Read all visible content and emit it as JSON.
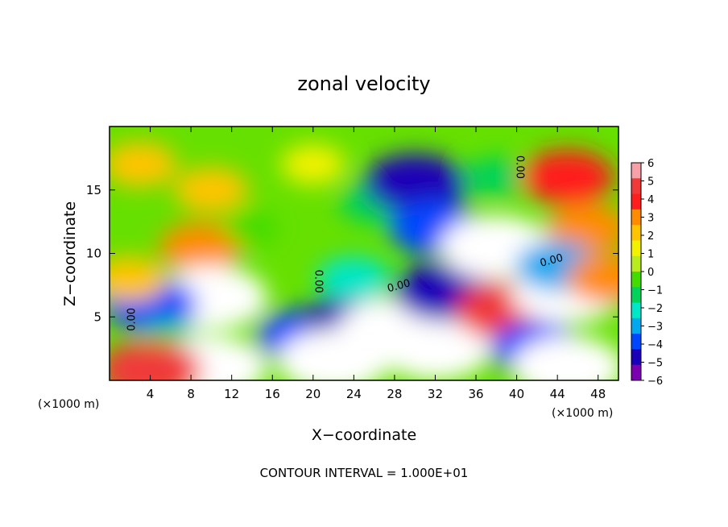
{
  "chart_data": {
    "type": "heatmap",
    "title": "zonal velocity",
    "xlabel": "X−coordinate",
    "ylabel": "Z−coordinate",
    "x_unit_left": "(×1000 m)",
    "x_unit_right": "(×1000 m)",
    "footer": "CONTOUR INTERVAL = 1.000E+01",
    "xlim": [
      0,
      50
    ],
    "ylim": [
      0,
      20
    ],
    "x_ticks": [
      4,
      8,
      12,
      16,
      20,
      24,
      28,
      32,
      36,
      40,
      44,
      48
    ],
    "y_ticks": [
      5,
      10,
      15
    ],
    "colorbar": {
      "min": -6,
      "max": 6,
      "ticks": [
        6,
        5,
        4,
        3,
        2,
        1,
        0,
        -1,
        -2,
        -3,
        -4,
        -5,
        -6
      ],
      "tick_labels": [
        "6",
        "5",
        "4",
        "3",
        "2",
        "1",
        "0",
        "−1",
        "−2",
        "−3",
        "−4",
        "−5",
        "−6"
      ],
      "colors": [
        "#f7a0a8",
        "#f03a3a",
        "#ff1e1e",
        "#ff8c00",
        "#ffc400",
        "#f2f200",
        "#b8ec1e",
        "#44dc00",
        "#00d25a",
        "#00e6c8",
        "#00a8f0",
        "#0046ff",
        "#1a00b8",
        "#7a00b0"
      ]
    },
    "contour_labels": [
      "0.00",
      "0.00",
      "0.00",
      "0.00",
      "0.00"
    ],
    "blobs": [
      {
        "x": 3,
        "y": 17,
        "v": 2
      },
      {
        "x": 10,
        "y": 15,
        "v": 2
      },
      {
        "x": 20,
        "y": 17,
        "v": 1
      },
      {
        "x": 26,
        "y": 14,
        "v": -1.5
      },
      {
        "x": 30,
        "y": 15.5,
        "v": -5
      },
      {
        "x": 32,
        "y": 12,
        "v": -4
      },
      {
        "x": 38,
        "y": 16,
        "v": -1
      },
      {
        "x": 45,
        "y": 16,
        "v": 4
      },
      {
        "x": 47,
        "y": 12,
        "v": 3
      },
      {
        "x": 9,
        "y": 10.5,
        "v": 3
      },
      {
        "x": 10,
        "y": 6.5,
        "v": 6
      },
      {
        "x": 4,
        "y": 6,
        "v": -4
      },
      {
        "x": 2,
        "y": 8,
        "v": 2
      },
      {
        "x": 6,
        "y": 3,
        "v": -1.5
      },
      {
        "x": 19,
        "y": 3.5,
        "v": -4
      },
      {
        "x": 24,
        "y": 4.5,
        "v": -5
      },
      {
        "x": 22,
        "y": 1.5,
        "v": 6
      },
      {
        "x": 28,
        "y": 4,
        "v": 6
      },
      {
        "x": 32,
        "y": 2.5,
        "v": 6
      },
      {
        "x": 33,
        "y": 7,
        "v": -5
      },
      {
        "x": 38,
        "y": 10.5,
        "v": 6
      },
      {
        "x": 39,
        "y": 5.5,
        "v": 5
      },
      {
        "x": 45,
        "y": 7,
        "v": 6
      },
      {
        "x": 44,
        "y": 9,
        "v": -3
      },
      {
        "x": 42,
        "y": 2.5,
        "v": -4
      },
      {
        "x": 45,
        "y": 1,
        "v": 6
      },
      {
        "x": 10,
        "y": 1,
        "v": 6
      },
      {
        "x": 4,
        "y": 0.8,
        "v": 5
      },
      {
        "x": 14,
        "y": 12,
        "v": 0
      },
      {
        "x": 24,
        "y": 8,
        "v": -2
      },
      {
        "x": 49,
        "y": 8,
        "v": 3
      }
    ]
  }
}
